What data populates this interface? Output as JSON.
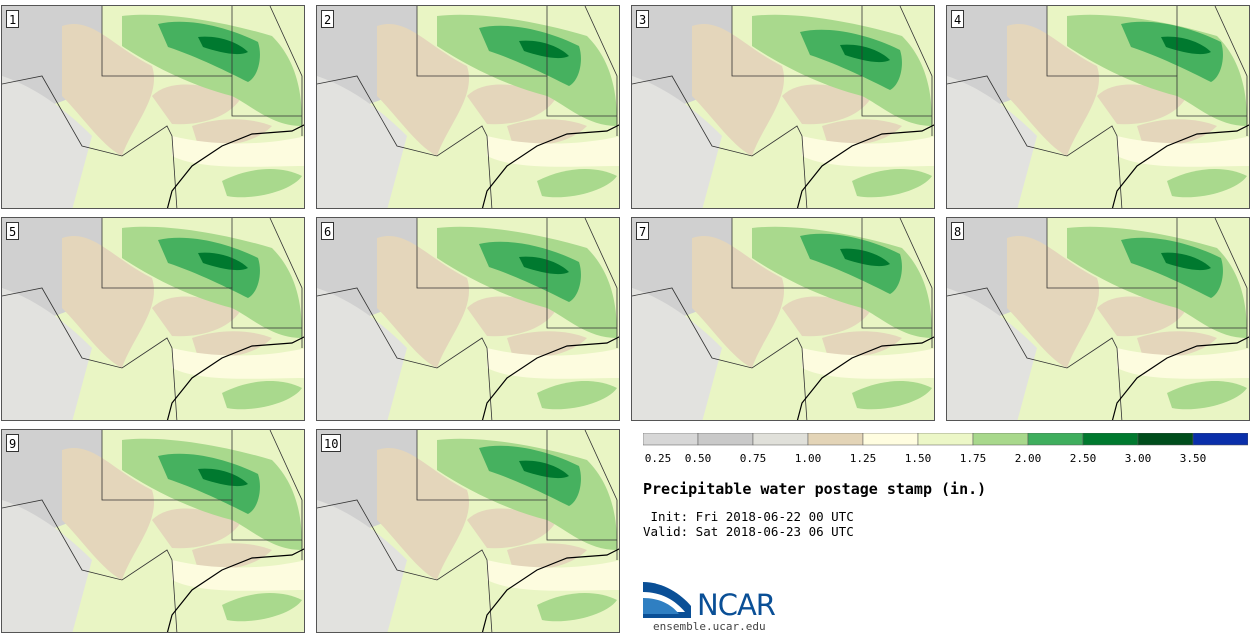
{
  "stamps": [
    {
      "label": "1"
    },
    {
      "label": "2"
    },
    {
      "label": "3"
    },
    {
      "label": "4"
    },
    {
      "label": "5"
    },
    {
      "label": "6"
    },
    {
      "label": "7"
    },
    {
      "label": "8"
    },
    {
      "label": "9"
    },
    {
      "label": "10"
    }
  ],
  "legend": {
    "ticks": [
      "0.25",
      "0.50",
      "0.75",
      "1.00",
      "1.25",
      "1.50",
      "1.75",
      "2.00",
      "2.50",
      "3.00",
      "3.50"
    ],
    "colors": [
      "#d7d7d7",
      "#c9c9c9",
      "#e0e0da",
      "#e3d4b7",
      "#fffde0",
      "#ecf7c7",
      "#a8d88c",
      "#3fae5e",
      "#00792f",
      "#004d1c",
      "#0a2faa"
    ]
  },
  "map_colors": {
    "gray": "#d0d0d0",
    "lightgray": "#e2e2df",
    "tan": "#e4d6bb",
    "cream": "#fdfcdf",
    "lightgreen": "#e9f5c4",
    "green": "#a9d98d",
    "midgreen": "#46b15f",
    "darkgreen": "#00792f"
  },
  "title": "Precipitable water postage stamp (in.)",
  "init_text": " Init: Fri 2018-06-22 00 UTC",
  "valid_text": "Valid: Sat 2018-06-23 06 UTC",
  "logo": {
    "name": "NCAR",
    "url_text": "ensemble.ucar.edu"
  }
}
